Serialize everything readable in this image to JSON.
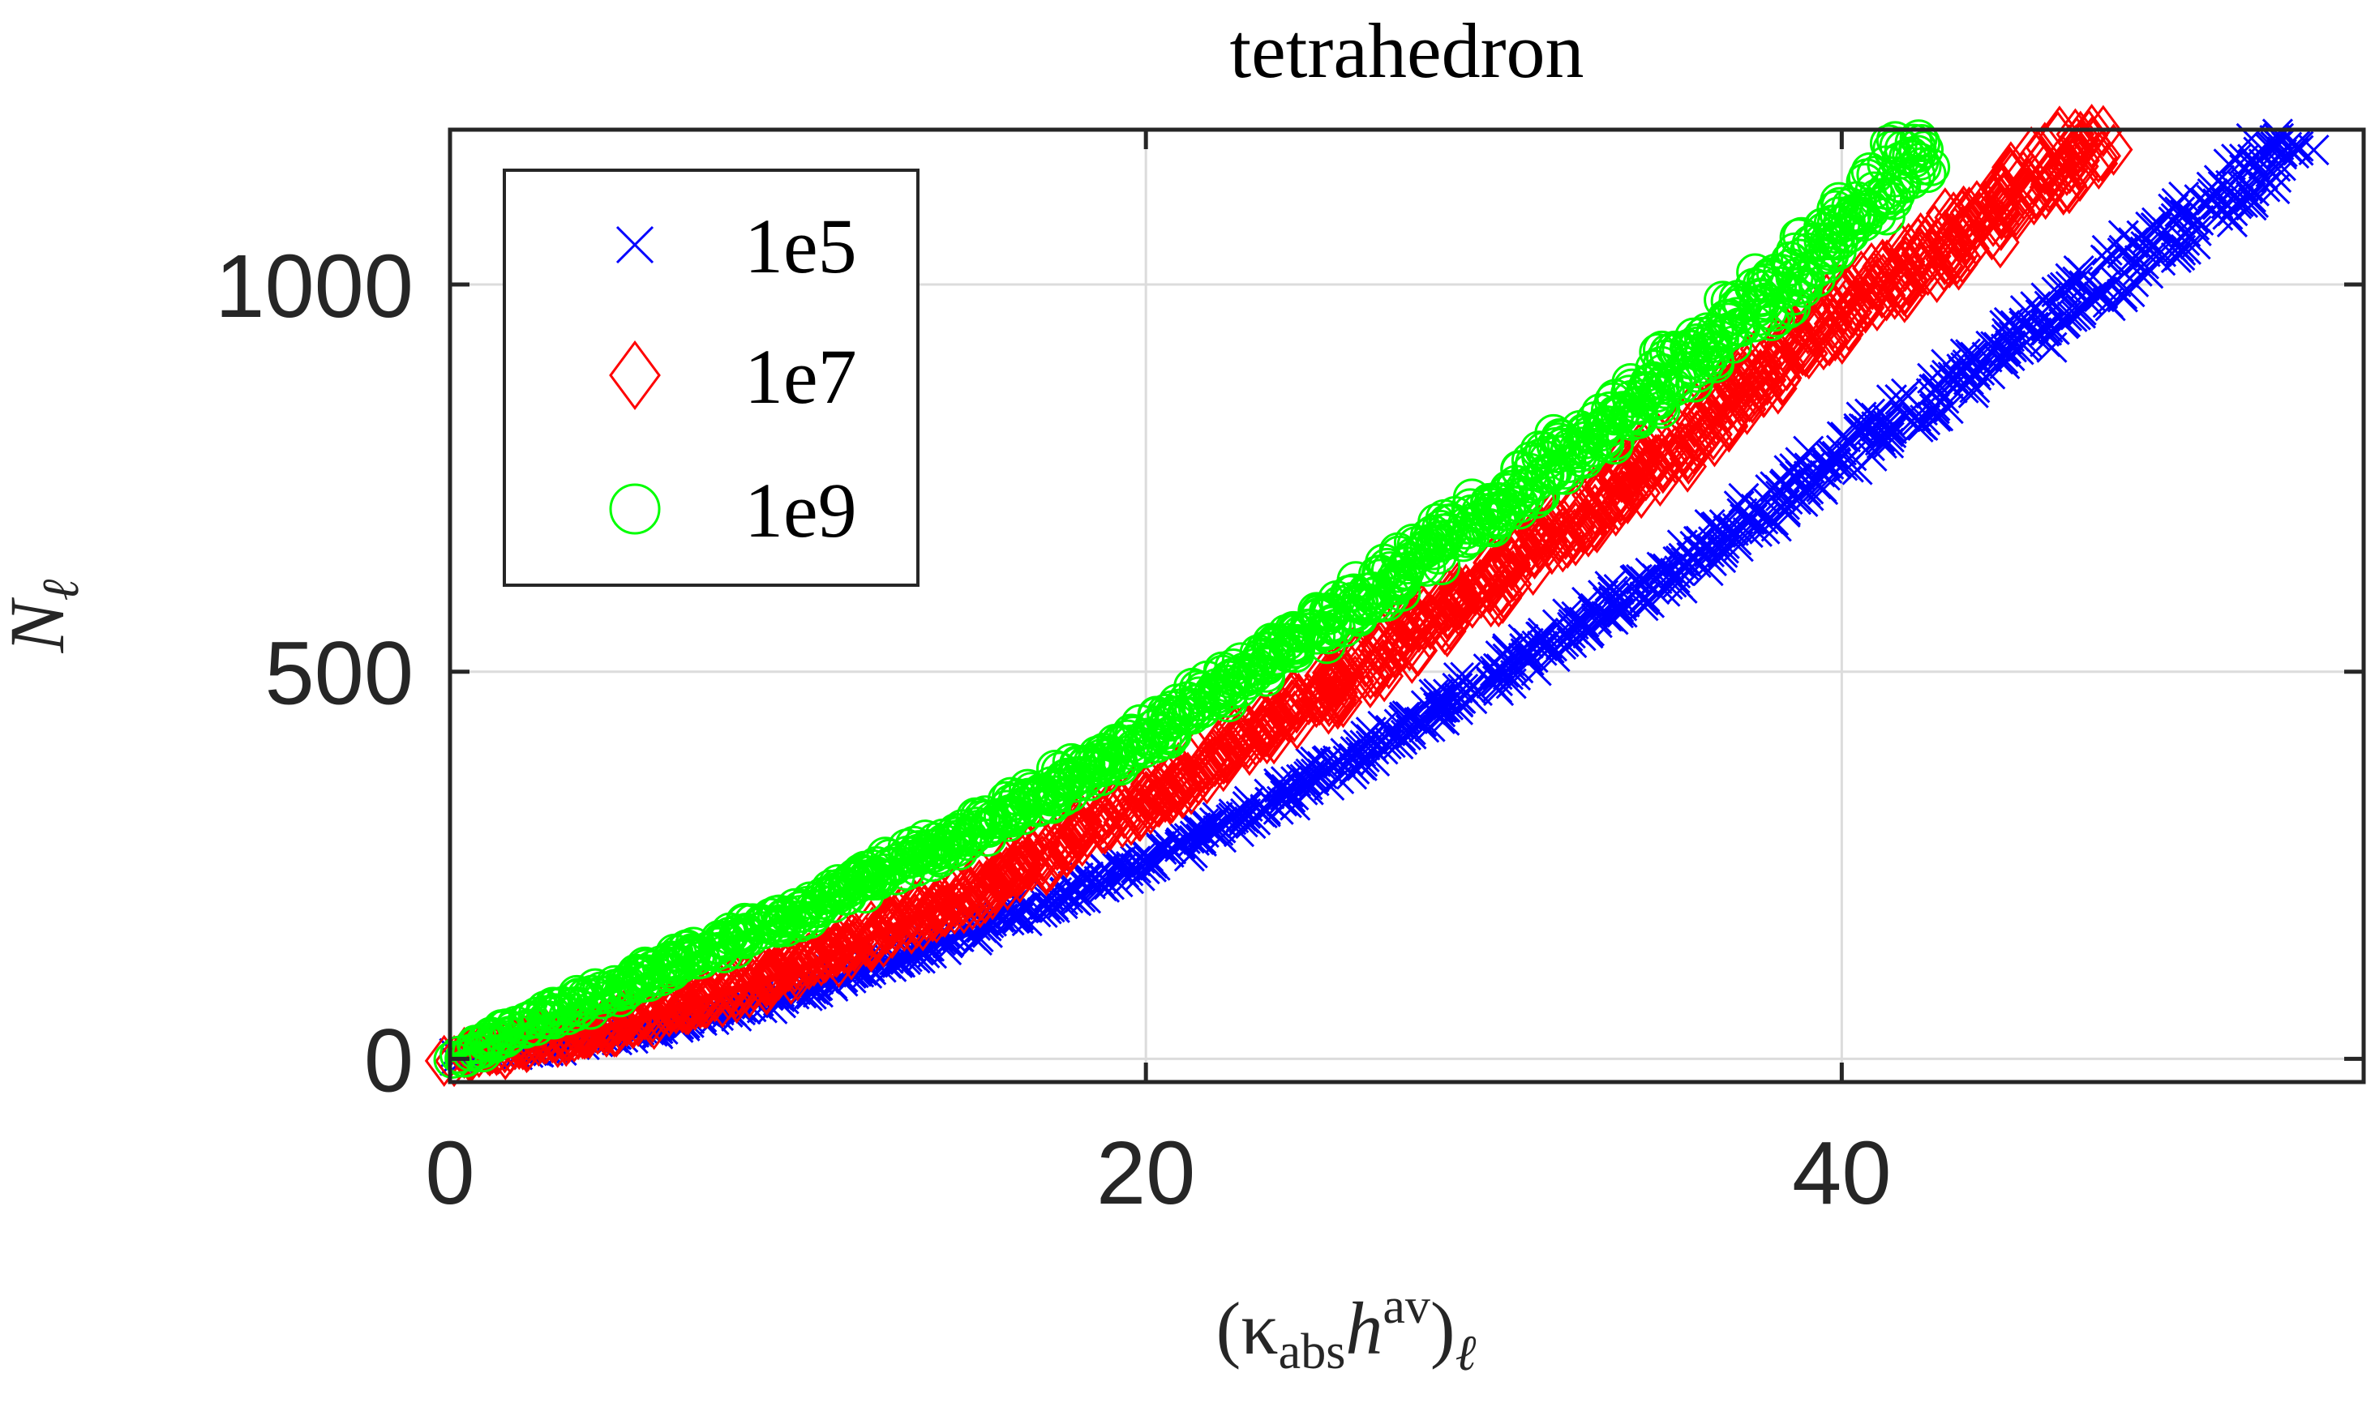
{
  "chart_data": {
    "type": "scatter",
    "title": "tetrahedron",
    "xlabel": {
      "base": "(κ",
      "sub1": "abs",
      "mid": "h",
      "sup": "av",
      "close": ")",
      "sub2": "ℓ"
    },
    "ylabel": {
      "base": "N",
      "sub": "ℓ"
    },
    "xlim": [
      0,
      55
    ],
    "ylim": [
      -30,
      1200
    ],
    "xticks": [
      0,
      20,
      40
    ],
    "yticks": [
      0,
      500,
      1000
    ],
    "xtick_labels": [
      "0",
      "20",
      "40"
    ],
    "ytick_labels": [
      "0",
      "500",
      "1000"
    ],
    "grid": true,
    "legend_position": "top-left",
    "series": [
      {
        "name": "1e5",
        "marker": "x",
        "color": "#0000ff",
        "x_max": 53.5,
        "y_max": 1200,
        "curve": [
          [
            0,
            0
          ],
          [
            5,
            28
          ],
          [
            10,
            85
          ],
          [
            15,
            165
          ],
          [
            20,
            255
          ],
          [
            25,
            365
          ],
          [
            30,
            495
          ],
          [
            35,
            625
          ],
          [
            40,
            780
          ],
          [
            45,
            930
          ],
          [
            50,
            1080
          ],
          [
            53.5,
            1200
          ]
        ]
      },
      {
        "name": "1e7",
        "marker": "diamond",
        "color": "#ff0000",
        "x_max": 47.5,
        "y_max": 1200,
        "curve": [
          [
            0,
            0
          ],
          [
            5,
            45
          ],
          [
            10,
            115
          ],
          [
            15,
            215
          ],
          [
            20,
            335
          ],
          [
            25,
            470
          ],
          [
            30,
            620
          ],
          [
            35,
            780
          ],
          [
            40,
            965
          ],
          [
            44,
            1080
          ],
          [
            47.5,
            1200
          ]
        ]
      },
      {
        "name": "1e9",
        "marker": "circle",
        "color": "#00ff00",
        "x_max": 42.5,
        "y_max": 1200,
        "curve": [
          [
            0,
            0
          ],
          [
            5,
            95
          ],
          [
            10,
            190
          ],
          [
            15,
            295
          ],
          [
            20,
            415
          ],
          [
            25,
            560
          ],
          [
            30,
            710
          ],
          [
            35,
            880
          ],
          [
            38,
            990
          ],
          [
            40,
            1070
          ],
          [
            42.5,
            1200
          ]
        ]
      }
    ]
  }
}
